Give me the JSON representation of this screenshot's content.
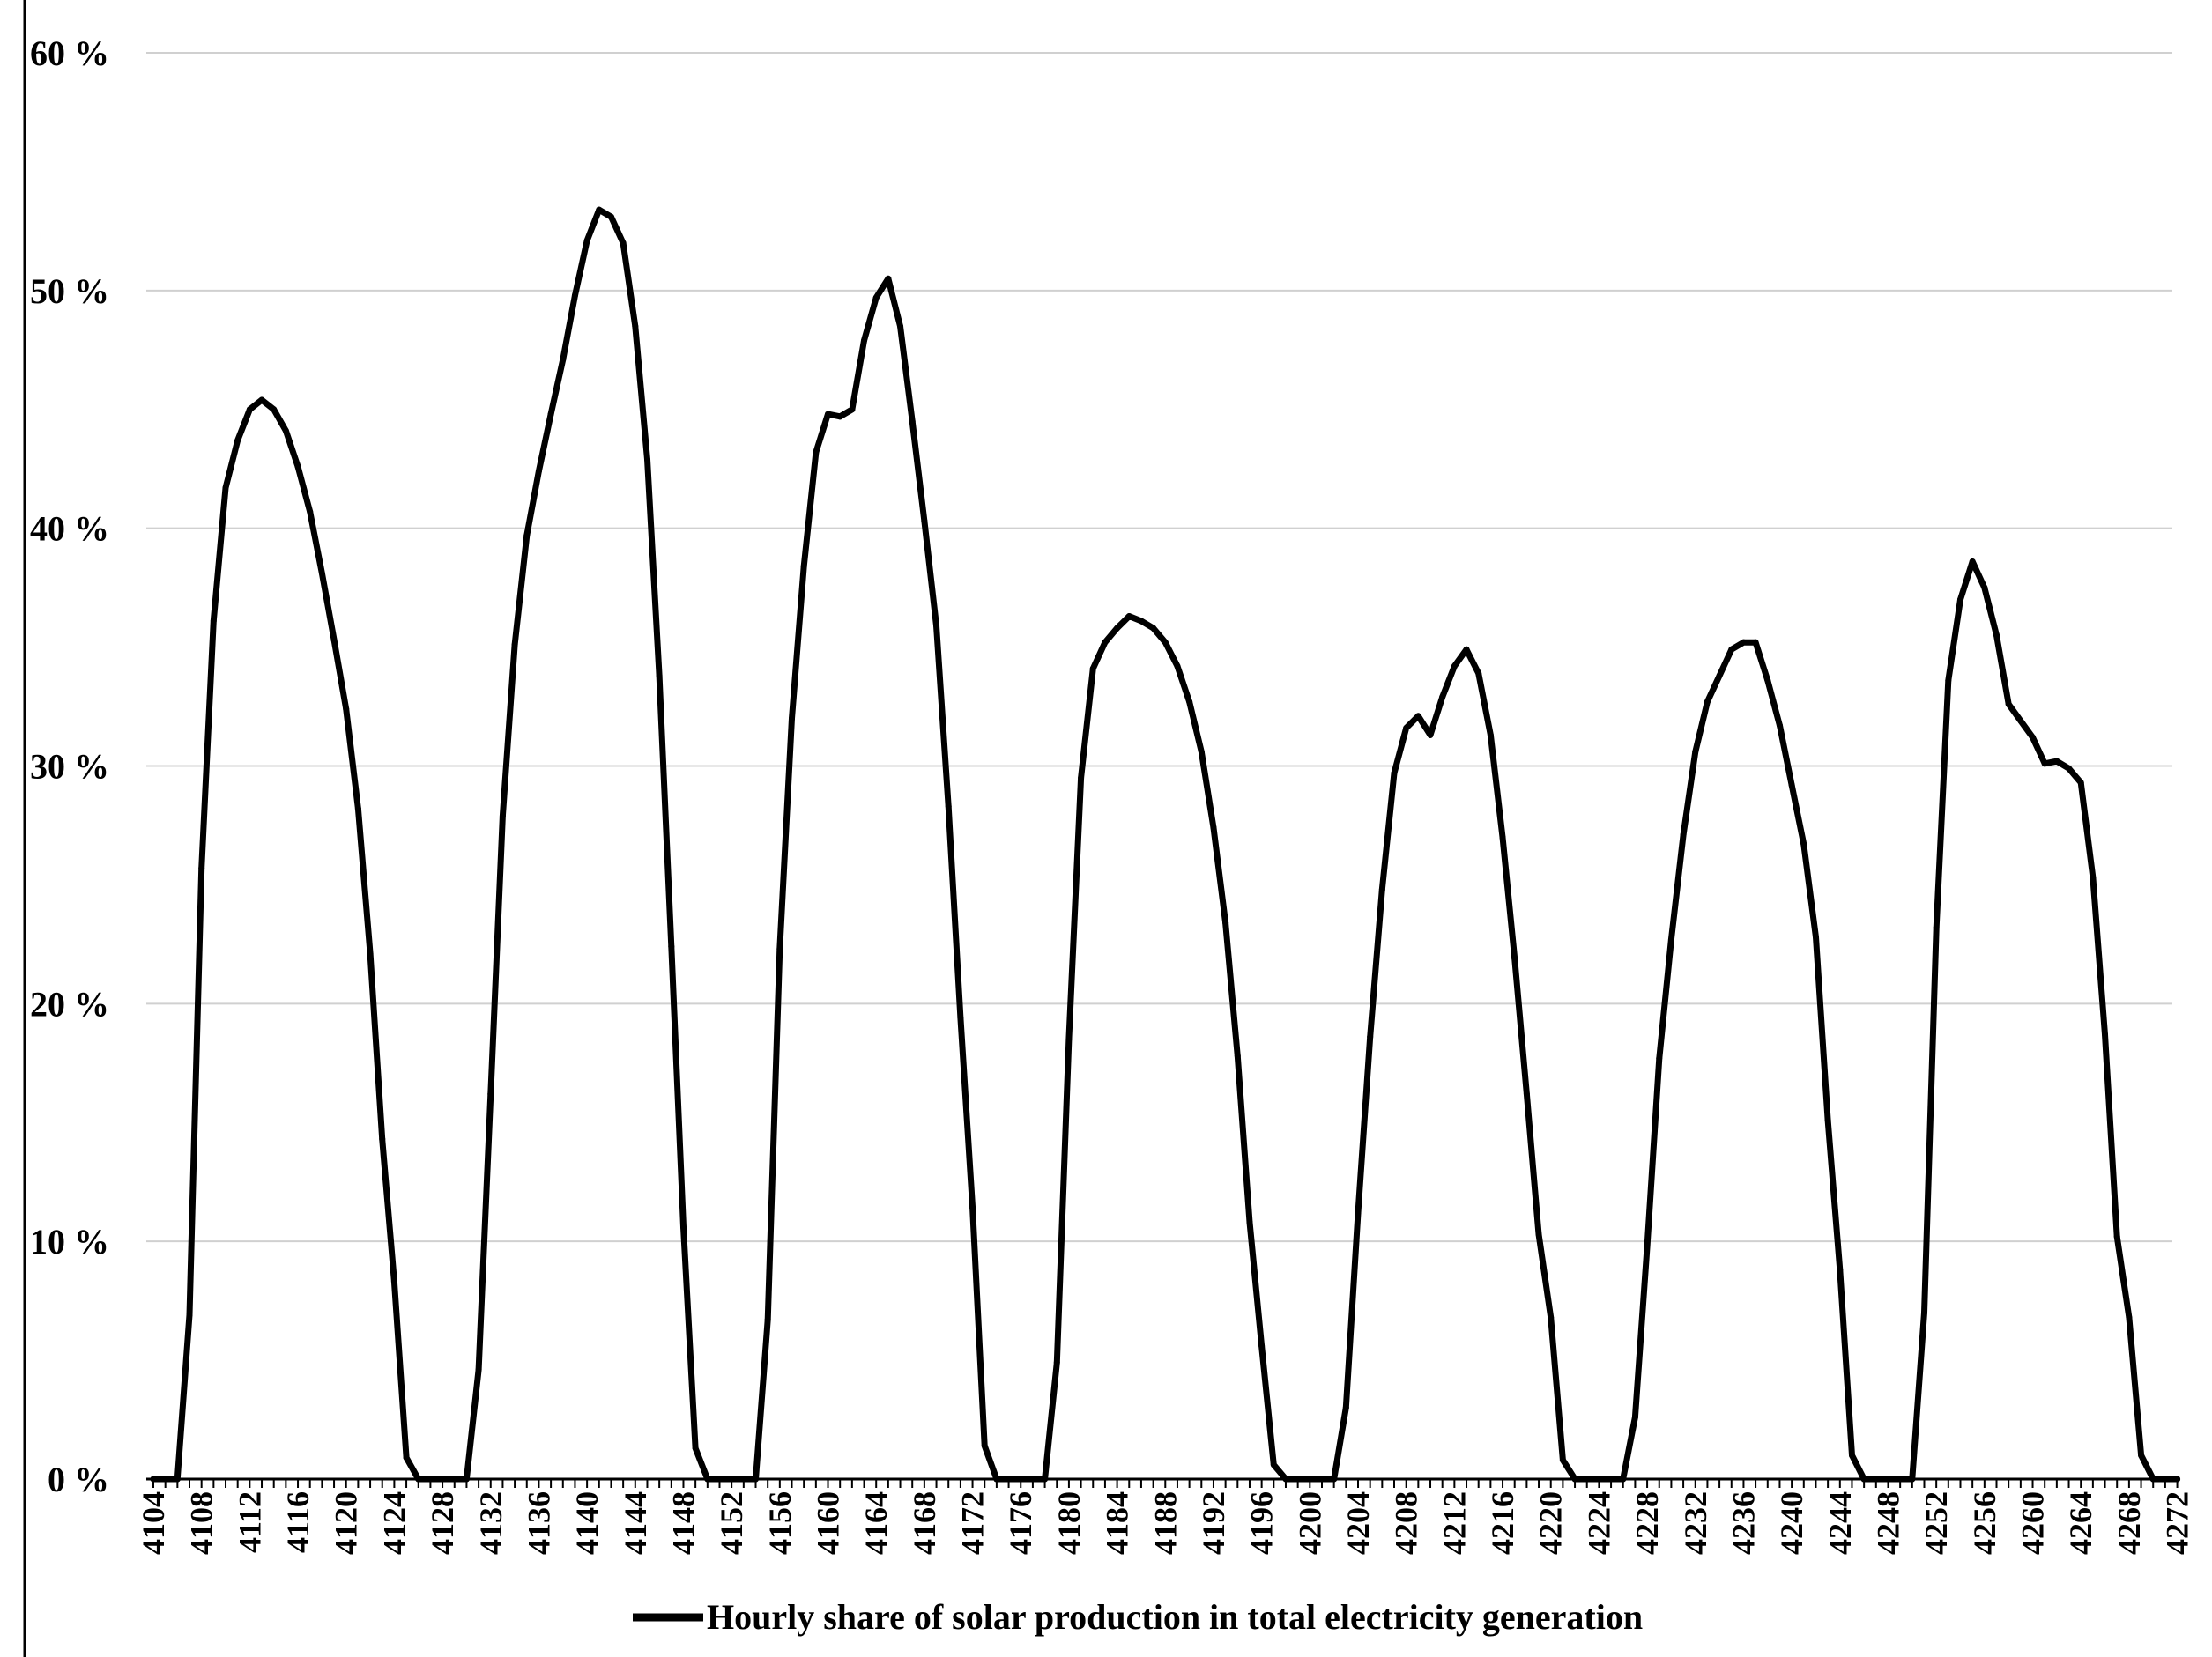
{
  "chart_data": {
    "type": "line",
    "title": "",
    "xlabel": "",
    "ylabel": "",
    "x_start": 4104,
    "x_end": 4272,
    "x_tick_labels": [
      "4104",
      "4108",
      "4112",
      "4116",
      "4120",
      "4124",
      "4128",
      "4132",
      "4136",
      "4140",
      "4144",
      "4148",
      "4152",
      "4156",
      "4160",
      "4164",
      "4168",
      "4172",
      "4176",
      "4180",
      "4184",
      "4188",
      "4192",
      "4196",
      "4200",
      "4204",
      "4208",
      "4212",
      "4216",
      "4220",
      "4224",
      "4228",
      "4232",
      "4236",
      "4240",
      "4244",
      "4248",
      "4252",
      "4256",
      "4260",
      "4264",
      "4268",
      "4272"
    ],
    "y_tick_labels": [
      "0 %",
      "10 %",
      "20 %",
      "30 %",
      "40 %",
      "50 %",
      "60 %"
    ],
    "ylim": [
      0,
      60
    ],
    "grid": "horizontal",
    "legend_position": "bottom",
    "line_color": "#000000",
    "series": [
      {
        "name": "Hourly share of solar production in total electricity generation",
        "values": [
          0,
          0,
          0,
          6.9,
          25.7,
          36.1,
          41.7,
          43.7,
          45,
          45.4,
          45,
          44.1,
          42.6,
          40.7,
          38.1,
          35.3,
          32.4,
          28.2,
          22.1,
          14.3,
          8.3,
          0.9,
          0,
          0,
          0,
          0,
          0,
          4.6,
          16.2,
          27.9,
          35.1,
          39.7,
          42.4,
          44.8,
          47.1,
          49.8,
          52.1,
          53.4,
          53.1,
          52,
          48.5,
          42.9,
          33.8,
          22.4,
          10.6,
          1.3,
          0,
          0,
          0,
          0,
          0,
          6.7,
          22.3,
          32,
          38.4,
          43.2,
          44.8,
          44.7,
          45,
          47.9,
          49.7,
          50.5,
          48.5,
          44.5,
          40.3,
          35.9,
          28.3,
          19.4,
          11.4,
          1.4,
          0,
          0,
          0,
          0,
          0,
          4.9,
          18.5,
          29.5,
          34.1,
          35.2,
          35.8,
          36.3,
          36.1,
          35.8,
          35.2,
          34.2,
          32.7,
          30.6,
          27.4,
          23.4,
          17.8,
          10.8,
          5.6,
          0.6,
          0,
          0,
          0,
          0,
          0,
          3,
          11.2,
          18.6,
          24.8,
          29.7,
          31.6,
          32.1,
          31.3,
          32.9,
          34.2,
          34.9,
          33.9,
          31.3,
          27,
          21.9,
          16.2,
          10.3,
          6.8,
          0.8,
          0,
          0,
          0,
          0,
          0,
          2.6,
          9.8,
          17.7,
          22.7,
          27.1,
          30.6,
          32.7,
          33.8,
          34.9,
          35.2,
          35.2,
          33.6,
          31.7,
          29.2,
          26.7,
          22.8,
          15.1,
          8.8,
          1,
          0,
          0,
          0,
          0,
          0,
          7,
          23.2,
          33.6,
          37,
          38.6,
          37.5,
          35.5,
          32.6,
          31.9,
          31.2,
          30.1,
          30.2,
          29.9,
          29.3,
          25.3,
          18.7,
          10.2,
          6.8,
          1,
          0,
          0,
          0
        ]
      }
    ]
  }
}
